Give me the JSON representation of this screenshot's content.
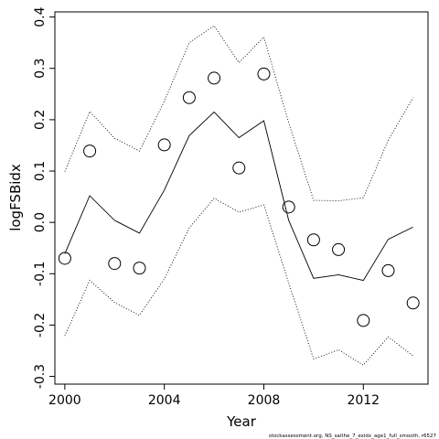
{
  "chart_data": {
    "type": "line",
    "xlabel": "Year",
    "ylabel": "logFSBidx",
    "xlim": [
      1999.6,
      2014.6
    ],
    "ylim": [
      -0.315,
      0.41
    ],
    "x_ticks": [
      2000,
      2004,
      2008,
      2012
    ],
    "x_tick_labels": [
      "2000",
      "2004",
      "2008",
      "2012"
    ],
    "y_ticks": [
      -0.3,
      -0.2,
      -0.1,
      0.0,
      0.1,
      0.2,
      0.3,
      0.4
    ],
    "y_tick_labels": [
      "-0.3",
      "-0.2",
      "-0.1",
      "0.0",
      "0.1",
      "0.2",
      "0.3",
      "0.4"
    ],
    "grid": false,
    "x": [
      2000,
      2001,
      2002,
      2003,
      2004,
      2005,
      2006,
      2007,
      2008,
      2009,
      2010,
      2011,
      2012,
      2013,
      2014
    ],
    "series": [
      {
        "role": "observed",
        "style": "open-circles",
        "values": [
          -0.07,
          0.139,
          -0.08,
          -0.089,
          0.151,
          0.243,
          0.281,
          0.106,
          0.289,
          0.03,
          -0.034,
          -0.053,
          -0.191,
          -0.094,
          -0.157
        ]
      },
      {
        "role": "fitted",
        "style": "solid",
        "values": [
          -0.061,
          0.052,
          0.004,
          -0.021,
          0.063,
          0.169,
          0.215,
          0.165,
          0.198,
          0.004,
          -0.109,
          -0.102,
          -0.113,
          -0.033,
          -0.009
        ]
      },
      {
        "role": "upper-bound",
        "style": "dotted",
        "values": [
          0.099,
          0.216,
          0.164,
          0.139,
          0.236,
          0.35,
          0.383,
          0.311,
          0.361,
          0.194,
          0.043,
          0.042,
          0.048,
          0.16,
          0.243
        ]
      },
      {
        "role": "lower-bound",
        "style": "dotted",
        "values": [
          -0.221,
          -0.113,
          -0.156,
          -0.181,
          -0.11,
          -0.011,
          0.047,
          0.02,
          0.034,
          -0.118,
          -0.266,
          -0.248,
          -0.278,
          -0.223,
          -0.26
        ]
      }
    ],
    "credit": "stockassessment.org, NS_saithe_7_exidx_age1_full_smooth, r6527"
  }
}
